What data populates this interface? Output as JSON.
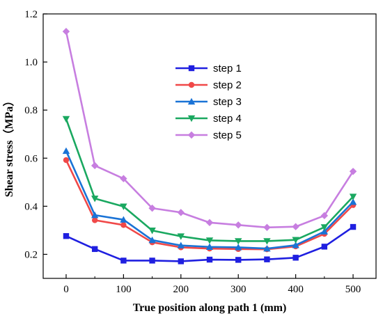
{
  "chart_data": {
    "type": "line",
    "xlabel": "True position along path 1 (mm)",
    "ylabel": "Shear stress（MPa）",
    "xlim": [
      -40,
      540
    ],
    "ylim": [
      0.1,
      1.2
    ],
    "xticks": [
      0,
      100,
      200,
      300,
      400,
      500
    ],
    "yticks": [
      0.2,
      0.4,
      0.6,
      0.8,
      1.0,
      1.2
    ],
    "ytick_labels": [
      "0.2",
      "0.4",
      "0.6",
      "0.8",
      "1.0",
      "1.2"
    ],
    "grid": false,
    "legend_position": "upper-center",
    "x": [
      0,
      50,
      100,
      150,
      200,
      250,
      300,
      350,
      400,
      450,
      500
    ],
    "series": [
      {
        "name": "step 1",
        "color": "#1f1fe0",
        "marker": "square",
        "values": [
          0.276,
          0.222,
          0.174,
          0.174,
          0.171,
          0.178,
          0.177,
          0.179,
          0.186,
          0.232,
          0.314
        ]
      },
      {
        "name": "step 2",
        "color": "#f04848",
        "marker": "circle",
        "values": [
          0.592,
          0.342,
          0.322,
          0.25,
          0.229,
          0.224,
          0.222,
          0.221,
          0.233,
          0.285,
          0.405
        ]
      },
      {
        "name": "step 3",
        "color": "#1a73d6",
        "marker": "triangle-up",
        "values": [
          0.63,
          0.363,
          0.344,
          0.259,
          0.237,
          0.231,
          0.229,
          0.224,
          0.238,
          0.295,
          0.418
        ]
      },
      {
        "name": "step 4",
        "color": "#1aa860",
        "marker": "triangle-down",
        "values": [
          0.763,
          0.432,
          0.399,
          0.299,
          0.275,
          0.258,
          0.255,
          0.255,
          0.26,
          0.313,
          0.44
        ]
      },
      {
        "name": "step 5",
        "color": "#c77ee0",
        "marker": "diamond",
        "values": [
          1.127,
          0.569,
          0.515,
          0.392,
          0.374,
          0.332,
          0.322,
          0.312,
          0.315,
          0.361,
          0.545
        ]
      }
    ]
  }
}
